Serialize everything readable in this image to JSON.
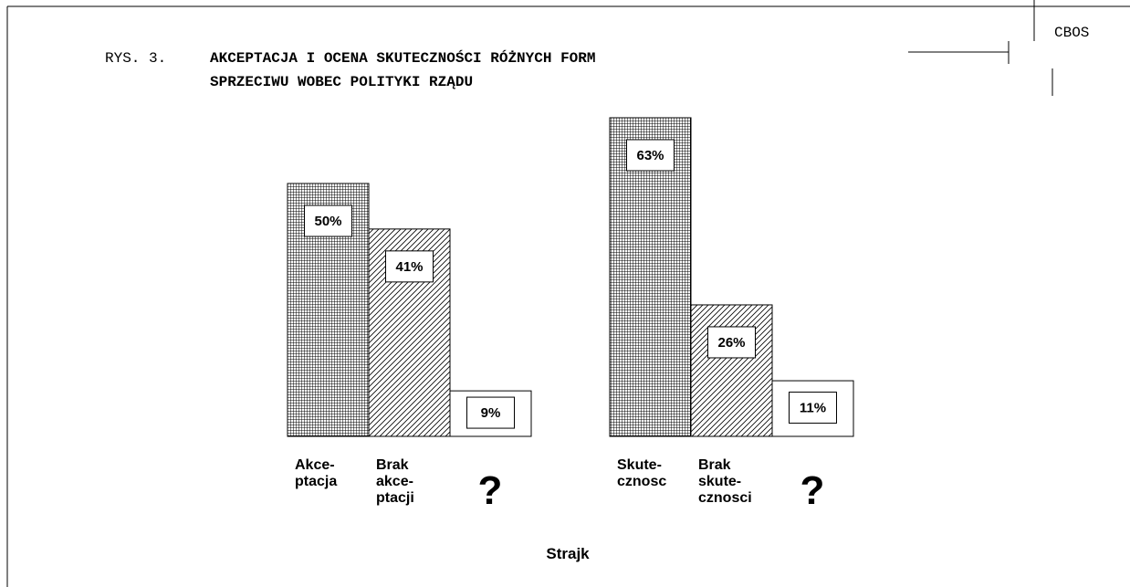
{
  "header": {
    "figure": "RYS. 3.",
    "title_lines": [
      "AKCEPTACJA I OCENA SKUTECZNOŚCI RÓŻNYCH FORM",
      "SPRZECIWU WOBEC POLITYKI RZĄDU"
    ],
    "source": "CBOS"
  },
  "xlabel": "Strajk",
  "chart_data": [
    {
      "type": "bar",
      "categories": [
        [
          "Akce-",
          "ptacja"
        ],
        [
          "Brak",
          "akce-",
          "ptacji"
        ],
        [
          "?"
        ]
      ],
      "values": [
        50,
        41,
        9
      ],
      "value_labels": [
        "50%",
        "41%",
        "9%"
      ],
      "patterns": [
        "crosshatch",
        "diagonal",
        "none"
      ],
      "ylim": [
        0,
        100
      ]
    },
    {
      "type": "bar",
      "categories": [
        [
          "Skute-",
          "cznosc"
        ],
        [
          "Brak",
          "skute-",
          "cznosci"
        ],
        [
          "?"
        ]
      ],
      "values": [
        63,
        26,
        11
      ],
      "value_labels": [
        "63%",
        "26%",
        "11%"
      ],
      "patterns": [
        "crosshatch",
        "diagonal",
        "none"
      ],
      "ylim": [
        0,
        100
      ]
    }
  ]
}
